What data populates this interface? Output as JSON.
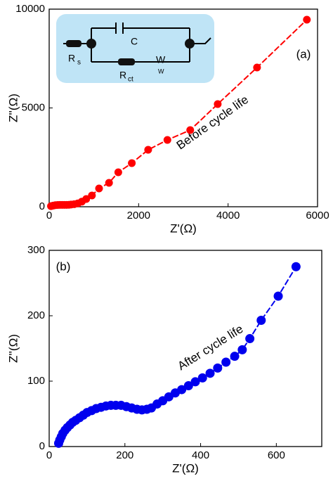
{
  "chart_data": [
    {
      "type": "scatter",
      "x_label": "Z'(Ω)",
      "y_label": "Z''(Ω)",
      "annotations": [
        "(a)",
        "Before cycle life"
      ],
      "xlim": [
        0,
        6000
      ],
      "ylim": [
        0,
        10000
      ],
      "xticks": [
        0,
        2000,
        4000,
        6000
      ],
      "yticks": [
        0,
        5000,
        10000
      ],
      "x": [
        40,
        90,
        140,
        190,
        240,
        290,
        340,
        390,
        440,
        490,
        560,
        640,
        730,
        828,
        955,
        1115,
        1338,
        1545,
        1847,
        2213,
        2643,
        3153,
        3768,
        4647,
        5761
      ],
      "series": [
        {
          "color": "#ff0000",
          "values": [
            30,
            60,
            80,
            90,
            95,
            95,
            95,
            95,
            100,
            110,
            130,
            170,
            260,
            391,
            569,
            925,
            1210,
            1744,
            2206,
            2883,
            3381,
            3879,
            5196,
            7046,
            9466
          ]
        }
      ],
      "inset_labels": [
        "C",
        "R",
        "s",
        "R",
        "ct",
        "W",
        "W"
      ]
    },
    {
      "type": "scatter",
      "x_label": "Z'(Ω)",
      "y_label": "Z''(Ω)",
      "annotations": [
        "(b)",
        "After cycle life"
      ],
      "xlim": [
        0,
        720
      ],
      "ylim": [
        0,
        300
      ],
      "xticks": [
        0,
        200,
        400,
        600
      ],
      "yticks": [
        0,
        100,
        200,
        300
      ],
      "x": [
        25,
        28,
        32,
        36,
        42,
        48,
        55,
        62,
        70,
        80,
        90,
        100,
        112,
        124,
        137,
        150,
        163,
        176,
        190,
        204,
        218,
        232,
        245,
        258,
        270,
        285,
        300,
        316,
        333,
        350,
        368,
        386,
        405,
        425,
        445,
        467,
        490,
        510,
        530,
        560,
        605,
        652
      ],
      "series": [
        {
          "color": "#0000ee",
          "values": [
            5,
            10,
            15,
            20,
            25,
            29,
            33,
            37,
            40,
            44,
            48,
            52,
            55,
            58,
            60,
            62,
            63,
            63,
            63,
            61,
            59,
            57,
            56,
            57,
            59,
            65,
            70,
            76,
            82,
            87,
            93,
            99,
            105,
            112,
            120,
            129,
            138,
            148,
            165,
            193,
            230,
            275
          ]
        }
      ]
    }
  ]
}
